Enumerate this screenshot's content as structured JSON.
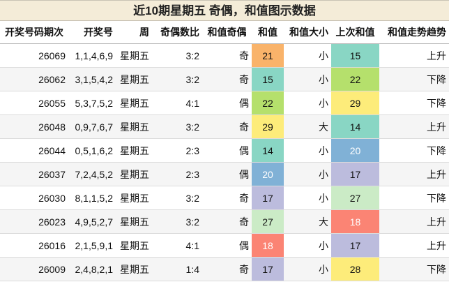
{
  "title": "近10期星期五 奇偶，和值图示数据",
  "headers": [
    "开奖号码期次",
    "开奖号",
    "周",
    "奇偶数比",
    "和值奇偶",
    "和值",
    "和值大小",
    "上次和值",
    "和值走势趋势"
  ],
  "colors": {
    "21": "#f9b36a",
    "15": "#89d6c4",
    "22": "#b5e06c",
    "29": "#fdec7a",
    "14": "#89d6c4",
    "20": "#80b1d6",
    "17": "#bcbcdd",
    "27": "#cbebc6",
    "18": "#fb8474",
    "28": "#fdec7a"
  },
  "rows": [
    {
      "issue": "26069",
      "numbers": "1,1,4,6,9",
      "week": "星期五",
      "ratio": "3:2",
      "parity": "奇",
      "sum": "21",
      "size": "小",
      "prev": "15",
      "trend": "上升"
    },
    {
      "issue": "26062",
      "numbers": "3,1,5,4,2",
      "week": "星期五",
      "ratio": "3:2",
      "parity": "奇",
      "sum": "15",
      "size": "小",
      "prev": "22",
      "trend": "下降"
    },
    {
      "issue": "26055",
      "numbers": "5,3,7,5,2",
      "week": "星期五",
      "ratio": "4:1",
      "parity": "偶",
      "sum": "22",
      "size": "小",
      "prev": "29",
      "trend": "下降"
    },
    {
      "issue": "26048",
      "numbers": "0,9,7,6,7",
      "week": "星期五",
      "ratio": "3:2",
      "parity": "奇",
      "sum": "29",
      "size": "大",
      "prev": "14",
      "trend": "上升"
    },
    {
      "issue": "26044",
      "numbers": "0,5,1,6,2",
      "week": "星期五",
      "ratio": "2:3",
      "parity": "偶",
      "sum": "14",
      "size": "小",
      "prev": "20",
      "trend": "下降"
    },
    {
      "issue": "26037",
      "numbers": "7,2,4,5,2",
      "week": "星期五",
      "ratio": "2:3",
      "parity": "偶",
      "sum": "20",
      "size": "小",
      "prev": "17",
      "trend": "上升"
    },
    {
      "issue": "26030",
      "numbers": "8,1,1,5,2",
      "week": "星期五",
      "ratio": "3:2",
      "parity": "奇",
      "sum": "17",
      "size": "小",
      "prev": "27",
      "trend": "下降"
    },
    {
      "issue": "26023",
      "numbers": "4,9,5,2,7",
      "week": "星期五",
      "ratio": "3:2",
      "parity": "奇",
      "sum": "27",
      "size": "大",
      "prev": "18",
      "trend": "上升"
    },
    {
      "issue": "26016",
      "numbers": "2,1,5,9,1",
      "week": "星期五",
      "ratio": "4:1",
      "parity": "偶",
      "sum": "18",
      "size": "小",
      "prev": "17",
      "trend": "上升"
    },
    {
      "issue": "26009",
      "numbers": "2,4,8,2,1",
      "week": "星期五",
      "ratio": "1:4",
      "parity": "奇",
      "sum": "17",
      "size": "小",
      "prev": "28",
      "trend": "下降"
    }
  ]
}
